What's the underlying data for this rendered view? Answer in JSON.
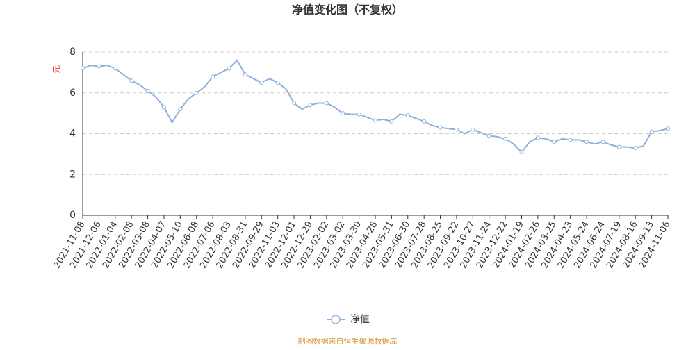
{
  "chart_data": {
    "type": "line",
    "title": "净值变化图（不复权）",
    "y_label": "元",
    "source": "制图数据来自恒生聚源数据库",
    "categories": [
      "2021-11-08",
      null,
      "2021-12-06",
      null,
      "2022-01-04",
      null,
      "2022-02-08",
      null,
      "2022-03-08",
      null,
      "2022-04-07",
      null,
      "2022-05-10",
      null,
      "2022-06-08",
      null,
      "2022-07-06",
      null,
      "2022-08-03",
      null,
      "2022-08-31",
      null,
      "2022-09-29",
      null,
      "2022-11-03",
      null,
      "2022-12-01",
      null,
      "2022-12-29",
      null,
      "2023-02-02",
      null,
      "2023-03-02",
      null,
      "2023-03-30",
      null,
      "2023-04-28",
      null,
      "2023-05-31",
      null,
      "2023-06-30",
      null,
      "2023-07-28",
      null,
      "2023-08-25",
      null,
      "2023-09-22",
      null,
      "2023-10-27",
      null,
      "2023-11-24",
      null,
      "2023-12-22",
      null,
      "2024-01-19",
      null,
      "2024-02-26",
      null,
      "2024-03-25",
      null,
      "2024-04-23",
      null,
      "2024-05-24",
      null,
      "2024-06-24",
      null,
      "2024-07-19",
      null,
      "2024-08-16",
      null,
      "2024-09-13",
      null,
      "2024-11-06"
    ],
    "series": [
      {
        "name": "净值",
        "color": "#8eb0dc",
        "values": [
          7.2,
          7.35,
          7.3,
          7.35,
          7.2,
          6.9,
          6.6,
          6.4,
          6.1,
          5.8,
          5.3,
          4.55,
          5.2,
          5.7,
          6.0,
          6.3,
          6.8,
          7.0,
          7.2,
          7.6,
          6.9,
          6.7,
          6.5,
          6.7,
          6.5,
          6.2,
          5.5,
          5.2,
          5.4,
          5.5,
          5.5,
          5.3,
          5.0,
          4.95,
          4.95,
          4.8,
          4.65,
          4.7,
          4.6,
          4.95,
          4.9,
          4.75,
          4.6,
          4.4,
          4.3,
          4.25,
          4.2,
          4.0,
          4.2,
          4.05,
          3.9,
          3.85,
          3.75,
          3.5,
          3.1,
          3.6,
          3.8,
          3.75,
          3.6,
          3.75,
          3.7,
          3.7,
          3.6,
          3.5,
          3.6,
          3.45,
          3.35,
          3.35,
          3.3,
          3.4,
          4.1,
          4.15,
          4.25
        ]
      }
    ],
    "ylim": [
      0,
      8
    ],
    "yticks": [
      0,
      2,
      4,
      6,
      8
    ],
    "grid": true,
    "legend": "bottom"
  }
}
